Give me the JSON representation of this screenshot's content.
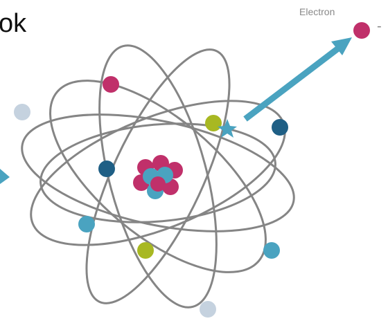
{
  "header": {
    "title": "ok"
  },
  "labels": {
    "electron": "Electron",
    "charge": "-"
  }
}
